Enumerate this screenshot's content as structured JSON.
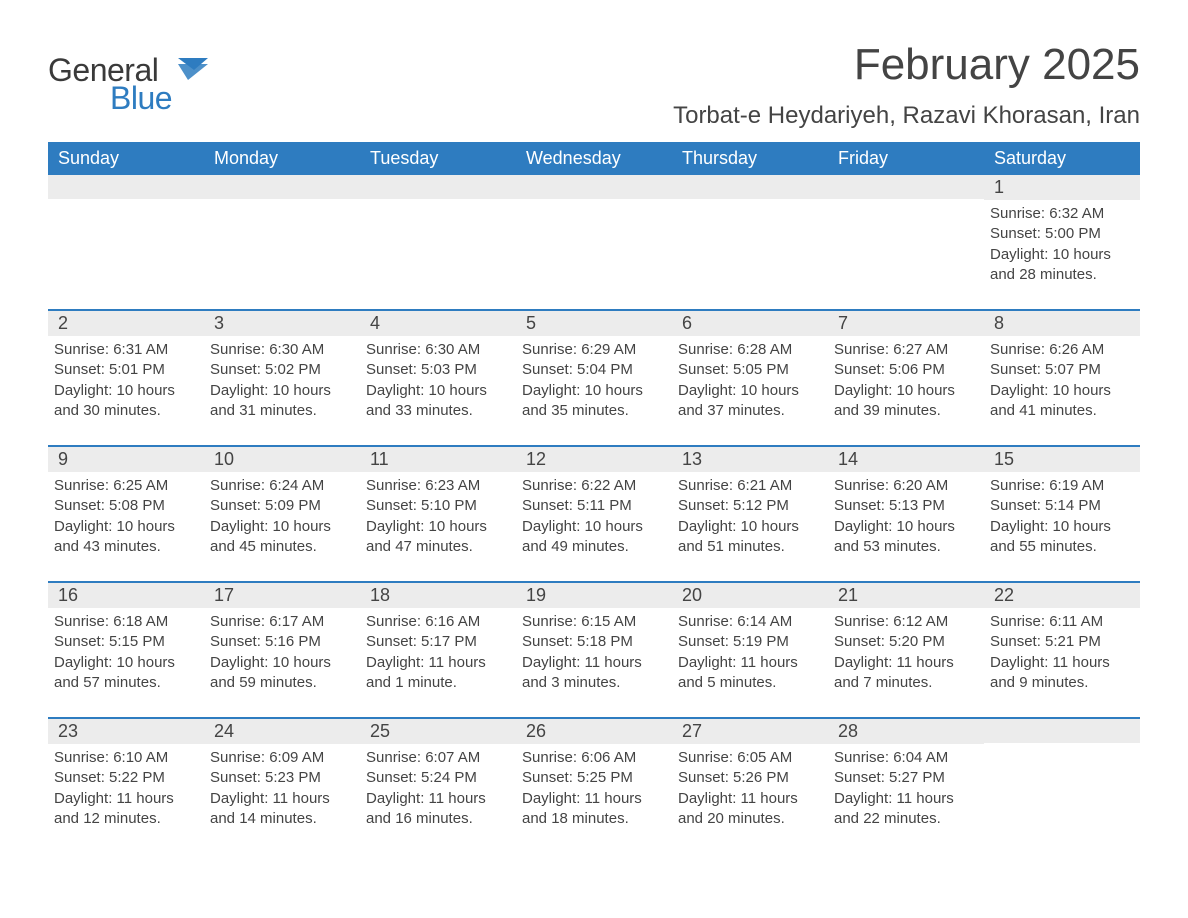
{
  "logo": {
    "word1": "General",
    "word2": "Blue",
    "flag_color": "#2e7cc0"
  },
  "title": "February 2025",
  "location": "Torbat-e Heydariyeh, Razavi Khorasan, Iran",
  "colors": {
    "header_bg": "#2e7cc0",
    "daynum_bg": "#ececec",
    "text": "#444444",
    "header_text": "#ffffff",
    "rule": "#2e7cc0",
    "background": "#ffffff"
  },
  "typography": {
    "title_fontsize": 44,
    "location_fontsize": 24,
    "header_fontsize": 18,
    "daynum_fontsize": 18,
    "detail_fontsize": 15,
    "logo_fontsize": 32
  },
  "layout": {
    "columns": 7,
    "rows": 5,
    "cell_min_height": 120
  },
  "weekdays": [
    "Sunday",
    "Monday",
    "Tuesday",
    "Wednesday",
    "Thursday",
    "Friday",
    "Saturday"
  ],
  "labels": {
    "sunrise": "Sunrise",
    "sunset": "Sunset",
    "daylight": "Daylight"
  },
  "weeks": [
    [
      null,
      null,
      null,
      null,
      null,
      null,
      {
        "day": "1",
        "sunrise": "6:32 AM",
        "sunset": "5:00 PM",
        "daylight": "10 hours and 28 minutes."
      }
    ],
    [
      {
        "day": "2",
        "sunrise": "6:31 AM",
        "sunset": "5:01 PM",
        "daylight": "10 hours and 30 minutes."
      },
      {
        "day": "3",
        "sunrise": "6:30 AM",
        "sunset": "5:02 PM",
        "daylight": "10 hours and 31 minutes."
      },
      {
        "day": "4",
        "sunrise": "6:30 AM",
        "sunset": "5:03 PM",
        "daylight": "10 hours and 33 minutes."
      },
      {
        "day": "5",
        "sunrise": "6:29 AM",
        "sunset": "5:04 PM",
        "daylight": "10 hours and 35 minutes."
      },
      {
        "day": "6",
        "sunrise": "6:28 AM",
        "sunset": "5:05 PM",
        "daylight": "10 hours and 37 minutes."
      },
      {
        "day": "7",
        "sunrise": "6:27 AM",
        "sunset": "5:06 PM",
        "daylight": "10 hours and 39 minutes."
      },
      {
        "day": "8",
        "sunrise": "6:26 AM",
        "sunset": "5:07 PM",
        "daylight": "10 hours and 41 minutes."
      }
    ],
    [
      {
        "day": "9",
        "sunrise": "6:25 AM",
        "sunset": "5:08 PM",
        "daylight": "10 hours and 43 minutes."
      },
      {
        "day": "10",
        "sunrise": "6:24 AM",
        "sunset": "5:09 PM",
        "daylight": "10 hours and 45 minutes."
      },
      {
        "day": "11",
        "sunrise": "6:23 AM",
        "sunset": "5:10 PM",
        "daylight": "10 hours and 47 minutes."
      },
      {
        "day": "12",
        "sunrise": "6:22 AM",
        "sunset": "5:11 PM",
        "daylight": "10 hours and 49 minutes."
      },
      {
        "day": "13",
        "sunrise": "6:21 AM",
        "sunset": "5:12 PM",
        "daylight": "10 hours and 51 minutes."
      },
      {
        "day": "14",
        "sunrise": "6:20 AM",
        "sunset": "5:13 PM",
        "daylight": "10 hours and 53 minutes."
      },
      {
        "day": "15",
        "sunrise": "6:19 AM",
        "sunset": "5:14 PM",
        "daylight": "10 hours and 55 minutes."
      }
    ],
    [
      {
        "day": "16",
        "sunrise": "6:18 AM",
        "sunset": "5:15 PM",
        "daylight": "10 hours and 57 minutes."
      },
      {
        "day": "17",
        "sunrise": "6:17 AM",
        "sunset": "5:16 PM",
        "daylight": "10 hours and 59 minutes."
      },
      {
        "day": "18",
        "sunrise": "6:16 AM",
        "sunset": "5:17 PM",
        "daylight": "11 hours and 1 minute."
      },
      {
        "day": "19",
        "sunrise": "6:15 AM",
        "sunset": "5:18 PM",
        "daylight": "11 hours and 3 minutes."
      },
      {
        "day": "20",
        "sunrise": "6:14 AM",
        "sunset": "5:19 PM",
        "daylight": "11 hours and 5 minutes."
      },
      {
        "day": "21",
        "sunrise": "6:12 AM",
        "sunset": "5:20 PM",
        "daylight": "11 hours and 7 minutes."
      },
      {
        "day": "22",
        "sunrise": "6:11 AM",
        "sunset": "5:21 PM",
        "daylight": "11 hours and 9 minutes."
      }
    ],
    [
      {
        "day": "23",
        "sunrise": "6:10 AM",
        "sunset": "5:22 PM",
        "daylight": "11 hours and 12 minutes."
      },
      {
        "day": "24",
        "sunrise": "6:09 AM",
        "sunset": "5:23 PM",
        "daylight": "11 hours and 14 minutes."
      },
      {
        "day": "25",
        "sunrise": "6:07 AM",
        "sunset": "5:24 PM",
        "daylight": "11 hours and 16 minutes."
      },
      {
        "day": "26",
        "sunrise": "6:06 AM",
        "sunset": "5:25 PM",
        "daylight": "11 hours and 18 minutes."
      },
      {
        "day": "27",
        "sunrise": "6:05 AM",
        "sunset": "5:26 PM",
        "daylight": "11 hours and 20 minutes."
      },
      {
        "day": "28",
        "sunrise": "6:04 AM",
        "sunset": "5:27 PM",
        "daylight": "11 hours and 22 minutes."
      },
      null
    ]
  ]
}
